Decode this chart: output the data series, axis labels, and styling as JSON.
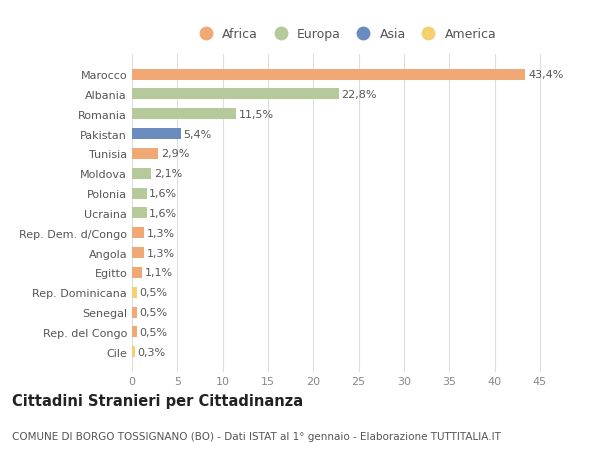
{
  "categories": [
    "Marocco",
    "Albania",
    "Romania",
    "Pakistan",
    "Tunisia",
    "Moldova",
    "Polonia",
    "Ucraina",
    "Rep. Dem. d/Congo",
    "Angola",
    "Egitto",
    "Rep. Dominicana",
    "Senegal",
    "Rep. del Congo",
    "Cile"
  ],
  "values": [
    43.4,
    22.8,
    11.5,
    5.4,
    2.9,
    2.1,
    1.6,
    1.6,
    1.3,
    1.3,
    1.1,
    0.5,
    0.5,
    0.5,
    0.3
  ],
  "labels": [
    "43,4%",
    "22,8%",
    "11,5%",
    "5,4%",
    "2,9%",
    "2,1%",
    "1,6%",
    "1,6%",
    "1,3%",
    "1,3%",
    "1,1%",
    "0,5%",
    "0,5%",
    "0,5%",
    "0,3%"
  ],
  "continents": [
    "Africa",
    "Europa",
    "Europa",
    "Asia",
    "Africa",
    "Europa",
    "Europa",
    "Europa",
    "Africa",
    "Africa",
    "Africa",
    "America",
    "Africa",
    "Africa",
    "America"
  ],
  "continent_colors": {
    "Africa": "#F0A875",
    "Europa": "#B5C99A",
    "Asia": "#6B8CBE",
    "America": "#F5D070"
  },
  "legend_order": [
    "Africa",
    "Europa",
    "Asia",
    "America"
  ],
  "xlim": [
    0,
    47
  ],
  "xticks": [
    0,
    5,
    10,
    15,
    20,
    25,
    30,
    35,
    40,
    45
  ],
  "title": "Cittadini Stranieri per Cittadinanza",
  "subtitle": "COMUNE DI BORGO TOSSIGNANO (BO) - Dati ISTAT al 1° gennaio - Elaborazione TUTTITALIA.IT",
  "bg_color": "#FFFFFF",
  "grid_color": "#DDDDDD",
  "bar_height": 0.55,
  "label_fontsize": 8.0,
  "ytick_fontsize": 8.0,
  "xtick_fontsize": 8.0,
  "title_fontsize": 10.5,
  "subtitle_fontsize": 7.5,
  "legend_fontsize": 9.0
}
